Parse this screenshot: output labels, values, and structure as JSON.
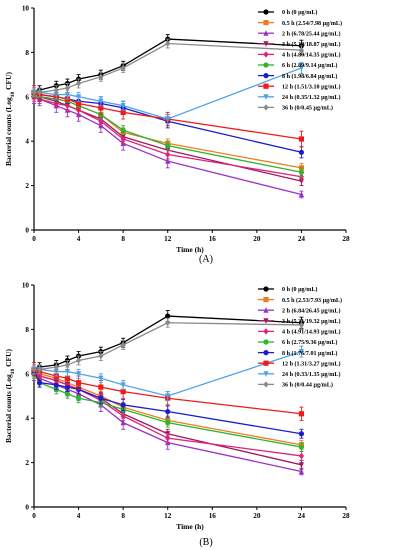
{
  "chart_data": [
    {
      "type": "line",
      "panel_label": "(A)",
      "xlabel": "Time (h)",
      "ylabel": "Bacterial counts (Log10 CFU)",
      "ylabel_parts": {
        "before": "Bacterial counts (Log",
        "sub": "10",
        "after": " CFU)"
      },
      "xlim": [
        0,
        28
      ],
      "ylim": [
        0,
        10
      ],
      "xticks": [
        0,
        4,
        8,
        12,
        16,
        20,
        24,
        28
      ],
      "yticks": [
        0,
        2,
        4,
        6,
        8,
        10
      ],
      "legend_position": "top-right",
      "x": [
        0,
        0.5,
        2,
        3,
        4,
        6,
        8,
        12,
        24
      ],
      "series": [
        {
          "name": "0 h (0 μg/mL)",
          "color": "#000000",
          "marker": "circle",
          "values": [
            6.2,
            6.3,
            6.5,
            6.6,
            6.8,
            7.0,
            7.4,
            8.6,
            8.3
          ],
          "errors": [
            0.2,
            0.2,
            0.2,
            0.2,
            0.2,
            0.2,
            0.2,
            0.2,
            0.25
          ]
        },
        {
          "name": "0.5 h (2.54/7.98 μg/mL)",
          "color": "#f07c1e",
          "marker": "square",
          "values": [
            6.1,
            6.0,
            5.9,
            5.8,
            5.6,
            5.2,
            4.4,
            3.9,
            2.8
          ],
          "errors": [
            0.2,
            0.2,
            0.2,
            0.2,
            0.2,
            0.2,
            0.2,
            0.2,
            0.2
          ]
        },
        {
          "name": "2 h (6.78/25.44 μg/mL)",
          "color": "#9b30c9",
          "marker": "triangle-up",
          "values": [
            6.0,
            5.9,
            5.6,
            5.4,
            5.2,
            4.7,
            3.9,
            3.1,
            1.6
          ],
          "errors": [
            0.3,
            0.3,
            0.3,
            0.3,
            0.3,
            0.3,
            0.3,
            0.3,
            0.15
          ]
        },
        {
          "name": "3 h (5.10/18.87 μg/mL)",
          "color": "#a3185d",
          "marker": "triangle-down",
          "values": [
            6.1,
            6.0,
            5.8,
            5.6,
            5.4,
            5.0,
            4.2,
            3.6,
            2.2
          ],
          "errors": [
            0.2,
            0.2,
            0.2,
            0.2,
            0.2,
            0.2,
            0.2,
            0.2,
            0.2
          ]
        },
        {
          "name": "4 h (4.80/14.35 μg/mL)",
          "color": "#e0217a",
          "marker": "diamond",
          "values": [
            6.0,
            5.9,
            5.7,
            5.6,
            5.4,
            4.9,
            4.1,
            3.4,
            2.4
          ],
          "errors": [
            0.2,
            0.2,
            0.2,
            0.2,
            0.2,
            0.2,
            0.2,
            0.2,
            0.2
          ]
        },
        {
          "name": "6 h (2.89/9.14 μg/mL)",
          "color": "#2fb52f",
          "marker": "circle",
          "values": [
            6.1,
            6.0,
            5.9,
            5.8,
            5.6,
            5.2,
            4.5,
            3.8,
            2.6
          ],
          "errors": [
            0.2,
            0.2,
            0.2,
            0.2,
            0.2,
            0.2,
            0.2,
            0.2,
            0.2
          ]
        },
        {
          "name": "8 h (1.98/6.84 μg/mL)",
          "color": "#1c1ccf",
          "marker": "circle",
          "values": [
            6.2,
            6.1,
            6.0,
            5.9,
            5.8,
            5.7,
            5.5,
            4.9,
            3.5
          ],
          "errors": [
            0.2,
            0.2,
            0.2,
            0.2,
            0.2,
            0.3,
            0.3,
            0.3,
            0.25
          ]
        },
        {
          "name": "12 h (1.51/3.10 μg/mL)",
          "color": "#ee1b1b",
          "marker": "square",
          "values": [
            6.2,
            6.1,
            6.0,
            5.9,
            5.7,
            5.5,
            5.3,
            5.0,
            4.1
          ],
          "errors": [
            0.3,
            0.3,
            0.3,
            0.3,
            0.3,
            0.3,
            0.3,
            0.3,
            0.35
          ]
        },
        {
          "name": "24 h (0.35/1.32 μg/mL)",
          "color": "#4da3ea",
          "marker": "triangle-down",
          "values": [
            6.2,
            6.2,
            6.1,
            6.1,
            6.0,
            5.8,
            5.6,
            5.0,
            7.3
          ],
          "errors": [
            0.2,
            0.2,
            0.2,
            0.2,
            0.2,
            0.2,
            0.2,
            0.2,
            0.25
          ]
        },
        {
          "name": "36 h (0/0.45 μg/mL)",
          "color": "#8a8a8a",
          "marker": "diamond",
          "values": [
            6.2,
            6.2,
            6.3,
            6.4,
            6.6,
            6.9,
            7.3,
            8.4,
            8.1
          ],
          "errors": [
            0.2,
            0.2,
            0.2,
            0.2,
            0.2,
            0.2,
            0.2,
            0.2,
            0.2
          ]
        }
      ]
    },
    {
      "type": "line",
      "panel_label": "(B)",
      "xlabel": "Time (h)",
      "ylabel": "Bacterial counts (Log10 CFU)",
      "ylabel_parts": {
        "before": "Bacterial counts (Log",
        "sub": "10",
        "after": " CFU)"
      },
      "xlim": [
        0,
        28
      ],
      "ylim": [
        0,
        10
      ],
      "xticks": [
        0,
        4,
        8,
        12,
        16,
        20,
        24,
        28
      ],
      "yticks": [
        0,
        2,
        4,
        6,
        8,
        10
      ],
      "legend_position": "top-right",
      "x": [
        0,
        0.5,
        2,
        3,
        4,
        6,
        8,
        12,
        24
      ],
      "series": [
        {
          "name": "0 h (0 μg/mL)",
          "color": "#000000",
          "marker": "circle",
          "values": [
            6.2,
            6.3,
            6.4,
            6.6,
            6.8,
            7.0,
            7.4,
            8.6,
            8.3
          ],
          "errors": [
            0.2,
            0.2,
            0.2,
            0.2,
            0.2,
            0.2,
            0.2,
            0.25,
            0.25
          ]
        },
        {
          "name": "0.5 h (2.53/7.93 μg/mL)",
          "color": "#f07c1e",
          "marker": "square",
          "values": [
            6.1,
            6.0,
            5.8,
            5.6,
            5.4,
            5.0,
            4.5,
            3.9,
            2.8
          ],
          "errors": [
            0.2,
            0.2,
            0.2,
            0.2,
            0.2,
            0.2,
            0.2,
            0.2,
            0.2
          ]
        },
        {
          "name": "2 h (6.84/26.45 μg/mL)",
          "color": "#9b30c9",
          "marker": "triangle-up",
          "values": [
            6.0,
            5.8,
            5.5,
            5.3,
            5.1,
            4.6,
            3.8,
            2.9,
            1.6
          ],
          "errors": [
            0.3,
            0.3,
            0.3,
            0.3,
            0.3,
            0.3,
            0.3,
            0.3,
            0.15
          ]
        },
        {
          "name": "3 h (5.21/19.32 μg/mL)",
          "color": "#a3185d",
          "marker": "triangle-down",
          "values": [
            6.1,
            5.9,
            5.7,
            5.5,
            5.3,
            4.9,
            4.2,
            3.3,
            1.9
          ],
          "errors": [
            0.2,
            0.2,
            0.2,
            0.2,
            0.2,
            0.2,
            0.2,
            0.2,
            0.2
          ]
        },
        {
          "name": "4 h (4.91/14.93 μg/mL)",
          "color": "#e0217a",
          "marker": "diamond",
          "values": [
            6.0,
            5.9,
            5.7,
            5.5,
            5.3,
            4.8,
            4.1,
            3.1,
            2.3
          ],
          "errors": [
            0.2,
            0.2,
            0.2,
            0.2,
            0.2,
            0.2,
            0.2,
            0.2,
            0.2
          ]
        },
        {
          "name": "6 h (2.75/9.36 μg/mL)",
          "color": "#2fb52f",
          "marker": "circle",
          "values": [
            6.0,
            5.6,
            5.3,
            5.1,
            4.9,
            4.7,
            4.4,
            3.8,
            2.7
          ],
          "errors": [
            0.2,
            0.2,
            0.2,
            0.2,
            0.2,
            0.2,
            0.2,
            0.2,
            0.2
          ]
        },
        {
          "name": "8 h (1.76/7.01 μg/mL)",
          "color": "#1c1ccf",
          "marker": "circle",
          "values": [
            6.1,
            5.6,
            5.5,
            5.4,
            5.3,
            4.9,
            4.6,
            4.3,
            3.3
          ],
          "errors": [
            0.2,
            0.2,
            0.2,
            0.2,
            0.2,
            0.25,
            0.25,
            0.25,
            0.2
          ]
        },
        {
          "name": "12 h (1.31/3.27 μg/mL)",
          "color": "#ee1b1b",
          "marker": "square",
          "values": [
            6.2,
            6.1,
            5.9,
            5.8,
            5.6,
            5.4,
            5.2,
            4.9,
            4.2
          ],
          "errors": [
            0.3,
            0.3,
            0.3,
            0.3,
            0.3,
            0.3,
            0.3,
            0.3,
            0.3
          ]
        },
        {
          "name": "24 h (0.33/1.35 μg/mL)",
          "color": "#4da3ea",
          "marker": "triangle-down",
          "values": [
            6.2,
            6.2,
            6.1,
            6.1,
            6.0,
            5.8,
            5.5,
            5.0,
            7.0
          ],
          "errors": [
            0.2,
            0.2,
            0.2,
            0.2,
            0.2,
            0.2,
            0.2,
            0.2,
            0.25
          ]
        },
        {
          "name": "36 h (0/0.44 μg/mL)",
          "color": "#8a8a8a",
          "marker": "diamond",
          "values": [
            6.2,
            6.2,
            6.3,
            6.4,
            6.6,
            6.8,
            7.3,
            8.3,
            8.2
          ],
          "errors": [
            0.2,
            0.2,
            0.2,
            0.2,
            0.2,
            0.2,
            0.2,
            0.2,
            0.2
          ]
        }
      ]
    }
  ]
}
